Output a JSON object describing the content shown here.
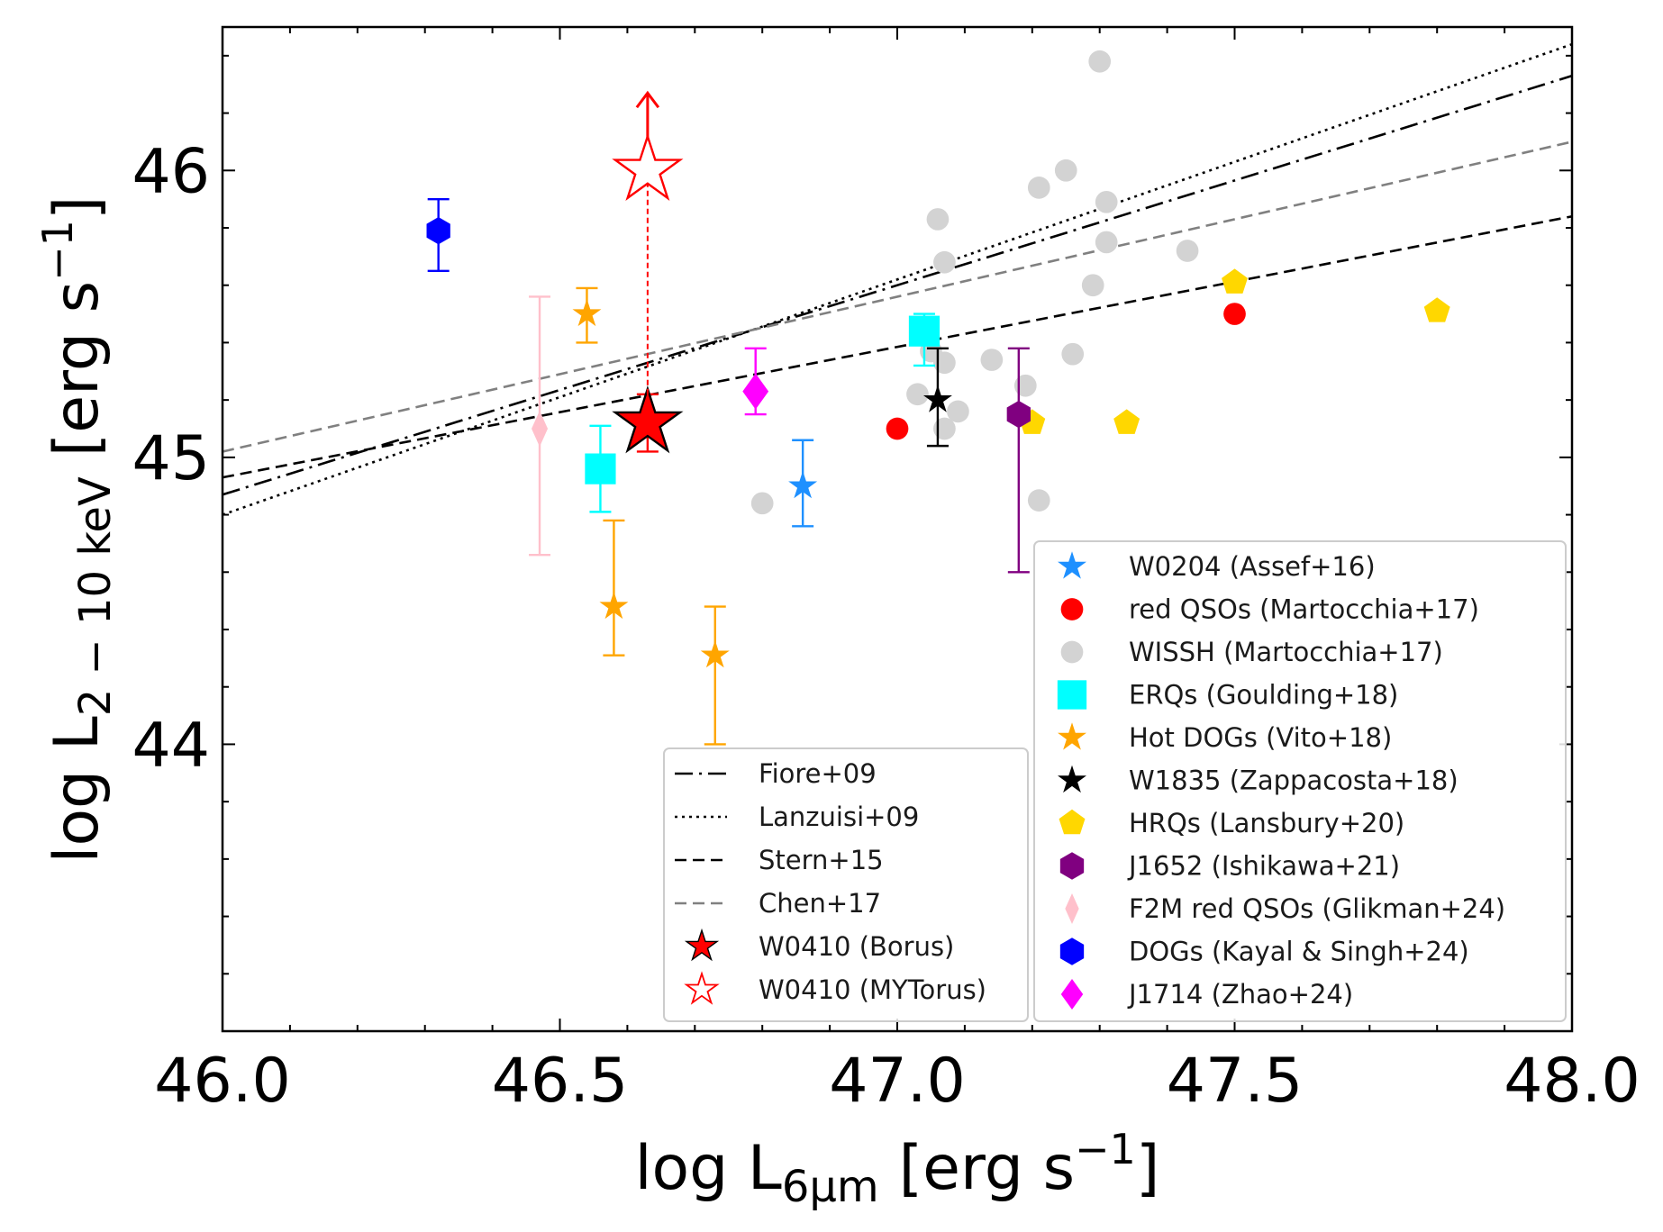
{
  "chart_data": {
    "type": "scatter",
    "xlabel": {
      "main": "log L",
      "sub": "6μm",
      "units": "[erg s",
      "sup": "−1",
      "close": "]"
    },
    "ylabel": {
      "main": "log L",
      "sub": "2 − 10 keV",
      "units": "[erg s",
      "sup": "−1",
      "close": "]"
    },
    "xlim": [
      46.0,
      48.0
    ],
    "ylim": [
      43.0,
      46.5
    ],
    "x_ticks": [
      "46.0",
      "46.5",
      "47.0",
      "47.5",
      "48.0"
    ],
    "x_tick_values": [
      46.0,
      46.5,
      47.0,
      47.5,
      48.0
    ],
    "y_ticks": [
      "44",
      "45",
      "46"
    ],
    "y_tick_values": [
      44,
      45,
      46
    ],
    "relations": [
      {
        "name": "Fiore+09",
        "style": "dashdot",
        "color": "#000000",
        "points": [
          [
            46.0,
            44.87
          ],
          [
            48.0,
            46.33
          ]
        ]
      },
      {
        "name": "Lanzuisi+09",
        "style": "dotted",
        "color": "#000000",
        "points": [
          [
            46.0,
            44.8
          ],
          [
            48.0,
            46.44
          ]
        ]
      },
      {
        "name": "Stern+15",
        "style": "dashed",
        "color": "#000000",
        "points": [
          [
            46.0,
            44.93
          ],
          [
            48.0,
            45.84
          ]
        ]
      },
      {
        "name": "Chen+17",
        "style": "dashed",
        "color": "#808080",
        "points": [
          [
            46.0,
            45.02
          ],
          [
            48.0,
            46.1
          ]
        ]
      }
    ],
    "series": [
      {
        "name": "W0204 (Assef+16)",
        "marker": "star",
        "color": "#1e90ff",
        "size": 32,
        "points": [
          {
            "x": 46.86,
            "y": 44.9,
            "err": [
              44.76,
              45.06
            ]
          }
        ]
      },
      {
        "name": "red QSOs (Martocchia+17)",
        "marker": "circle",
        "color": "#ff0000",
        "size": 26,
        "points": [
          {
            "x": 47.0,
            "y": 45.1
          },
          {
            "x": 47.5,
            "y": 45.5
          }
        ]
      },
      {
        "name": "WISSH (Martocchia+17)",
        "marker": "circle",
        "color": "#d3d3d3",
        "size": 26,
        "points": [
          {
            "x": 46.8,
            "y": 44.84
          },
          {
            "x": 47.03,
            "y": 45.22
          },
          {
            "x": 47.05,
            "y": 45.37
          },
          {
            "x": 47.07,
            "y": 45.33
          },
          {
            "x": 47.07,
            "y": 45.68
          },
          {
            "x": 47.06,
            "y": 45.83
          },
          {
            "x": 47.07,
            "y": 45.1
          },
          {
            "x": 47.09,
            "y": 45.16
          },
          {
            "x": 47.14,
            "y": 45.34
          },
          {
            "x": 47.19,
            "y": 45.25
          },
          {
            "x": 47.21,
            "y": 45.94
          },
          {
            "x": 47.21,
            "y": 44.85
          },
          {
            "x": 47.25,
            "y": 46.0
          },
          {
            "x": 47.26,
            "y": 45.36
          },
          {
            "x": 47.29,
            "y": 45.6
          },
          {
            "x": 47.3,
            "y": 46.38
          },
          {
            "x": 47.31,
            "y": 45.89
          },
          {
            "x": 47.31,
            "y": 45.75
          },
          {
            "x": 47.43,
            "y": 45.72
          }
        ]
      },
      {
        "name": "ERQs (Goulding+18)",
        "marker": "square",
        "color": "#00ffff",
        "size": 36,
        "points": [
          {
            "x": 46.56,
            "y": 44.96,
            "err": [
              44.81,
              45.11
            ]
          },
          {
            "x": 47.04,
            "y": 45.44,
            "err": [
              45.32,
              45.5
            ]
          }
        ]
      },
      {
        "name": "Hot DOGs (Vito+18)",
        "marker": "star",
        "color": "#ffa500",
        "size": 32,
        "points": [
          {
            "x": 46.54,
            "y": 45.5,
            "err": [
              45.4,
              45.59
            ]
          },
          {
            "x": 46.58,
            "y": 44.48,
            "err": [
              44.31,
              44.78
            ]
          },
          {
            "x": 46.73,
            "y": 44.31,
            "err": [
              44.0,
              44.48
            ]
          }
        ]
      },
      {
        "name": "W1835 (Zappacosta+18)",
        "marker": "star",
        "color": "#000000",
        "size": 32,
        "points": [
          {
            "x": 47.06,
            "y": 45.2,
            "err": [
              45.04,
              45.38
            ]
          }
        ]
      },
      {
        "name": "HRQs (Lansbury+20)",
        "marker": "pentagon",
        "color": "#ffd700",
        "size": 32,
        "points": [
          {
            "x": 47.2,
            "y": 45.12
          },
          {
            "x": 47.34,
            "y": 45.12
          },
          {
            "x": 47.5,
            "y": 45.61
          },
          {
            "x": 47.8,
            "y": 45.51
          }
        ]
      },
      {
        "name": "J1652 (Ishikawa+21)",
        "marker": "hexagon",
        "color": "#800080",
        "size": 32,
        "points": [
          {
            "x": 47.18,
            "y": 45.15,
            "err": [
              44.6,
              45.38
            ]
          }
        ]
      },
      {
        "name": "F2M red QSOs (Glikman+24)",
        "marker": "thin_diamond",
        "color": "#ffc0cb",
        "size": 40,
        "points": [
          {
            "x": 46.47,
            "y": 45.1,
            "err": [
              44.66,
              45.56
            ]
          }
        ]
      },
      {
        "name": "DOGs (Kayal & Singh+24)",
        "marker": "hexagon",
        "color": "#0000ff",
        "size": 32,
        "points": [
          {
            "x": 46.32,
            "y": 45.79,
            "err": [
              45.65,
              45.9
            ]
          }
        ]
      },
      {
        "name": " J1714 (Zhao+24)",
        "marker": "diamond",
        "color": "#ff00ff",
        "size": 40,
        "points": [
          {
            "x": 46.79,
            "y": 45.23,
            "err": [
              45.15,
              45.38
            ]
          }
        ]
      },
      {
        "name": "W0410 (Borus)",
        "marker": "star",
        "color": "#ff0000",
        "size": 72,
        "filled": true,
        "points": [
          {
            "x": 46.63,
            "y": 45.12,
            "err": [
              45.02,
              45.22
            ]
          }
        ]
      },
      {
        "name": "W0410 (MYTorus)",
        "marker": "star",
        "color": "#ff0000",
        "size": 72,
        "filled": false,
        "points": [
          {
            "x": 46.63,
            "y": 46.0,
            "upper_limit_arrow_to": 46.27
          }
        ]
      }
    ],
    "legend_left": {
      "placement": "lower-center",
      "entries": [
        {
          "label": "Fiore+09",
          "type": "line",
          "ref": "Fiore+09"
        },
        {
          "label": "Lanzuisi+09",
          "type": "line",
          "ref": "Lanzuisi+09"
        },
        {
          "label": "Stern+15",
          "type": "line",
          "ref": "Stern+15"
        },
        {
          "label": "Chen+17",
          "type": "line",
          "ref": "Chen+17"
        },
        {
          "label": "W0410 (Borus)",
          "type": "marker",
          "ref": "W0410 (Borus)"
        },
        {
          "label": "W0410 (MYTorus)",
          "type": "marker",
          "ref": "W0410 (MYTorus)"
        }
      ]
    },
    "legend_right": {
      "placement": "lower-right",
      "entries": [
        {
          "label": "W0204 (Assef+16)",
          "type": "marker",
          "ref": "W0204 (Assef+16)"
        },
        {
          "label": "red QSOs (Martocchia+17)",
          "type": "marker",
          "ref": "red QSOs (Martocchia+17)"
        },
        {
          "label": "WISSH (Martocchia+17)",
          "type": "marker",
          "ref": "WISSH (Martocchia+17)"
        },
        {
          "label": "ERQs (Goulding+18)",
          "type": "marker",
          "ref": "ERQs (Goulding+18)"
        },
        {
          "label": "Hot DOGs (Vito+18)",
          "type": "marker",
          "ref": "Hot DOGs (Vito+18)"
        },
        {
          "label": "W1835 (Zappacosta+18)",
          "type": "marker",
          "ref": "W1835 (Zappacosta+18)"
        },
        {
          "label": "HRQs (Lansbury+20)",
          "type": "marker",
          "ref": "HRQs (Lansbury+20)"
        },
        {
          "label": "J1652 (Ishikawa+21)",
          "type": "marker",
          "ref": "J1652 (Ishikawa+21)"
        },
        {
          "label": "F2M red QSOs (Glikman+24)",
          "type": "marker",
          "ref": "F2M red QSOs (Glikman+24)"
        },
        {
          "label": "DOGs (Kayal & Singh+24)",
          "type": "marker",
          "ref": "DOGs (Kayal & Singh+24)"
        },
        {
          "label": " J1714 (Zhao+24)",
          "type": "marker",
          "ref": " J1714 (Zhao+24)"
        }
      ]
    }
  }
}
